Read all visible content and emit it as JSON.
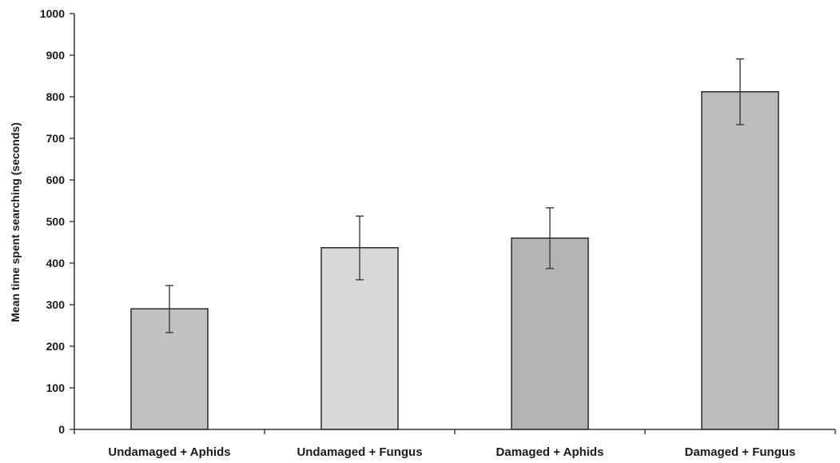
{
  "chart_data": {
    "type": "bar",
    "title": "",
    "xlabel": "",
    "ylabel": "Mean time spent searching (seconds)",
    "ylim": [
      0,
      1000
    ],
    "yticks": [
      0,
      100,
      200,
      300,
      400,
      500,
      600,
      700,
      800,
      900,
      1000
    ],
    "grid": false,
    "legend": "none",
    "categories": [
      "Undamaged + Aphids",
      "Undamaged + Fungus",
      "Damaged + Aphids",
      "Damaged + Fungus"
    ],
    "values": [
      290,
      437,
      460,
      812
    ],
    "error_low": [
      233,
      360,
      387,
      733
    ],
    "error_high": [
      346,
      513,
      533,
      891
    ],
    "bar_colors": [
      "#c2c2c2",
      "#d8d8d8",
      "#b4b4b4",
      "#bcbcbc"
    ],
    "axis_color": "#333333",
    "bar_stroke": "#2a2a2a"
  }
}
